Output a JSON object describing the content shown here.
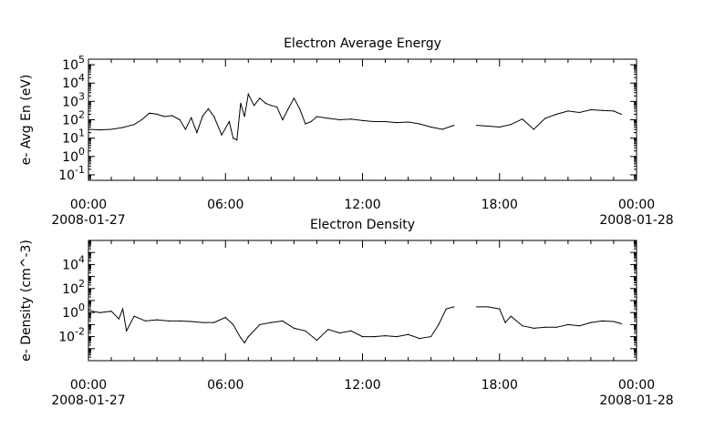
{
  "chart_data": [
    {
      "type": "line",
      "title": "Electron Average Energy",
      "ylabel": "e- Avg En (eV)",
      "xlabel": "",
      "y_scale": "log",
      "ylim": [
        0.05,
        200000
      ],
      "y_ticks": [
        {
          "value": 0.1,
          "base": "10",
          "exp": "-1"
        },
        {
          "value": 1,
          "base": "10",
          "exp": "0"
        },
        {
          "value": 10,
          "base": "10",
          "exp": "1"
        },
        {
          "value": 100,
          "base": "10",
          "exp": "2"
        },
        {
          "value": 1000,
          "base": "10",
          "exp": "3"
        },
        {
          "value": 10000,
          "base": "10",
          "exp": "4"
        },
        {
          "value": 100000,
          "base": "10",
          "exp": "5"
        }
      ],
      "x_ticks": [
        {
          "time": "2008-01-27 00:00",
          "label": "00:00",
          "date_label": "2008-01-27"
        },
        {
          "time": "2008-01-27 06:00",
          "label": "06:00",
          "date_label": ""
        },
        {
          "time": "2008-01-27 12:00",
          "label": "12:00",
          "date_label": ""
        },
        {
          "time": "2008-01-27 18:00",
          "label": "18:00",
          "date_label": ""
        },
        {
          "time": "2008-01-28 00:00",
          "label": "00:00",
          "date_label": "2008-01-28"
        }
      ],
      "xlim": [
        "2008-01-27 00:00",
        "2008-01-28 00:00"
      ],
      "grid": false,
      "series": [
        {
          "color": "#000000",
          "points": [
            [
              "2008-01-27 00:00",
              30
            ],
            [
              "2008-01-27 00:30",
              28
            ],
            [
              "2008-01-27 01:00",
              30
            ],
            [
              "2008-01-27 01:30",
              38
            ],
            [
              "2008-01-27 02:00",
              55
            ],
            [
              "2008-01-27 02:20",
              100
            ],
            [
              "2008-01-27 02:40",
              230
            ],
            [
              "2008-01-27 03:00",
              200
            ],
            [
              "2008-01-27 03:20",
              150
            ],
            [
              "2008-01-27 03:40",
              170
            ],
            [
              "2008-01-27 04:00",
              100
            ],
            [
              "2008-01-27 04:15",
              30
            ],
            [
              "2008-01-27 04:30",
              130
            ],
            [
              "2008-01-27 04:45",
              20
            ],
            [
              "2008-01-27 05:00",
              160
            ],
            [
              "2008-01-27 05:15",
              400
            ],
            [
              "2008-01-27 05:30",
              150
            ],
            [
              "2008-01-27 05:50",
              15
            ],
            [
              "2008-01-27 06:10",
              80
            ],
            [
              "2008-01-27 06:20",
              10
            ],
            [
              "2008-01-27 06:30",
              8
            ],
            [
              "2008-01-27 06:40",
              800
            ],
            [
              "2008-01-27 06:50",
              150
            ],
            [
              "2008-01-27 07:00",
              2500
            ],
            [
              "2008-01-27 07:15",
              600
            ],
            [
              "2008-01-27 07:30",
              1500
            ],
            [
              "2008-01-27 07:45",
              800
            ],
            [
              "2008-01-27 08:00",
              600
            ],
            [
              "2008-01-27 08:15",
              500
            ],
            [
              "2008-01-27 08:30",
              100
            ],
            [
              "2008-01-27 08:45",
              400
            ],
            [
              "2008-01-27 09:00",
              1500
            ],
            [
              "2008-01-27 09:15",
              400
            ],
            [
              "2008-01-27 09:30",
              60
            ],
            [
              "2008-01-27 09:45",
              80
            ],
            [
              "2008-01-27 10:00",
              150
            ],
            [
              "2008-01-27 10:30",
              120
            ],
            [
              "2008-01-27 11:00",
              100
            ],
            [
              "2008-01-27 11:30",
              110
            ],
            [
              "2008-01-27 12:00",
              90
            ],
            [
              "2008-01-27 12:30",
              80
            ],
            [
              "2008-01-27 13:00",
              80
            ],
            [
              "2008-01-27 13:30",
              70
            ],
            [
              "2008-01-27 14:00",
              75
            ],
            [
              "2008-01-27 14:30",
              60
            ],
            [
              "2008-01-27 15:00",
              40
            ],
            [
              "2008-01-27 15:30",
              30
            ],
            [
              "2008-01-27 16:00",
              50
            ],
            null,
            [
              "2008-01-27 17:00",
              50
            ],
            [
              "2008-01-27 17:30",
              45
            ],
            [
              "2008-01-27 18:00",
              40
            ],
            [
              "2008-01-27 18:30",
              55
            ],
            [
              "2008-01-27 19:00",
              110
            ],
            [
              "2008-01-27 19:30",
              30
            ],
            [
              "2008-01-27 20:00",
              120
            ],
            [
              "2008-01-27 20:30",
              200
            ],
            [
              "2008-01-27 21:00",
              300
            ],
            [
              "2008-01-27 21:30",
              250
            ],
            [
              "2008-01-27 22:00",
              350
            ],
            [
              "2008-01-27 22:30",
              320
            ],
            [
              "2008-01-27 23:00",
              300
            ],
            [
              "2008-01-27 23:20",
              200
            ]
          ]
        }
      ]
    },
    {
      "type": "line",
      "title": "Electron Density",
      "ylabel": "e- Density (cm^-3)",
      "xlabel": "",
      "y_scale": "log",
      "ylim": [
        0.0001,
        1000000
      ],
      "y_ticks": [
        {
          "value": 0.01,
          "base": "10",
          "exp": "-2"
        },
        {
          "value": 1,
          "base": "10",
          "exp": "0"
        },
        {
          "value": 100,
          "base": "10",
          "exp": "2"
        },
        {
          "value": 10000,
          "base": "10",
          "exp": "4"
        }
      ],
      "x_ticks": [
        {
          "time": "2008-01-27 00:00",
          "label": "00:00",
          "date_label": "2008-01-27"
        },
        {
          "time": "2008-01-27 06:00",
          "label": "06:00",
          "date_label": ""
        },
        {
          "time": "2008-01-27 12:00",
          "label": "12:00",
          "date_label": ""
        },
        {
          "time": "2008-01-27 18:00",
          "label": "18:00",
          "date_label": ""
        },
        {
          "time": "2008-01-28 00:00",
          "label": "00:00",
          "date_label": "2008-01-28"
        }
      ],
      "xlim": [
        "2008-01-27 00:00",
        "2008-01-28 00:00"
      ],
      "grid": false,
      "series": [
        {
          "color": "#000000",
          "points": [
            [
              "2008-01-27 00:00",
              1.5
            ],
            [
              "2008-01-27 00:30",
              1.0
            ],
            [
              "2008-01-27 01:00",
              1.3
            ],
            [
              "2008-01-27 01:20",
              0.3
            ],
            [
              "2008-01-27 01:30",
              2.0
            ],
            [
              "2008-01-27 01:40",
              0.03
            ],
            [
              "2008-01-27 02:00",
              0.5
            ],
            [
              "2008-01-27 02:30",
              0.2
            ],
            [
              "2008-01-27 03:00",
              0.25
            ],
            [
              "2008-01-27 03:30",
              0.2
            ],
            [
              "2008-01-27 04:00",
              0.2
            ],
            [
              "2008-01-27 04:30",
              0.18
            ],
            [
              "2008-01-27 05:00",
              0.15
            ],
            [
              "2008-01-27 05:30",
              0.15
            ],
            [
              "2008-01-27 06:00",
              0.4
            ],
            [
              "2008-01-27 06:20",
              0.1
            ],
            [
              "2008-01-27 06:40",
              0.008
            ],
            [
              "2008-01-27 06:50",
              0.003
            ],
            [
              "2008-01-27 07:00",
              0.01
            ],
            [
              "2008-01-27 07:30",
              0.1
            ],
            [
              "2008-01-27 08:00",
              0.15
            ],
            [
              "2008-01-27 08:30",
              0.2
            ],
            [
              "2008-01-27 09:00",
              0.05
            ],
            [
              "2008-01-27 09:30",
              0.03
            ],
            [
              "2008-01-27 10:00",
              0.005
            ],
            [
              "2008-01-27 10:30",
              0.04
            ],
            [
              "2008-01-27 11:00",
              0.02
            ],
            [
              "2008-01-27 11:30",
              0.03
            ],
            [
              "2008-01-27 12:00",
              0.01
            ],
            [
              "2008-01-27 12:30",
              0.01
            ],
            [
              "2008-01-27 13:00",
              0.012
            ],
            [
              "2008-01-27 13:30",
              0.01
            ],
            [
              "2008-01-27 14:00",
              0.015
            ],
            [
              "2008-01-27 14:30",
              0.007
            ],
            [
              "2008-01-27 15:00",
              0.01
            ],
            [
              "2008-01-27 15:20",
              0.1
            ],
            [
              "2008-01-27 15:40",
              2.0
            ],
            [
              "2008-01-27 16:00",
              3.0
            ],
            null,
            [
              "2008-01-27 17:00",
              3.0
            ],
            [
              "2008-01-27 17:30",
              3.0
            ],
            [
              "2008-01-27 18:00",
              2.0
            ],
            [
              "2008-01-27 18:15",
              0.15
            ],
            [
              "2008-01-27 18:30",
              0.5
            ],
            [
              "2008-01-27 19:00",
              0.08
            ],
            [
              "2008-01-27 19:30",
              0.05
            ],
            [
              "2008-01-27 20:00",
              0.06
            ],
            [
              "2008-01-27 20:30",
              0.06
            ],
            [
              "2008-01-27 21:00",
              0.1
            ],
            [
              "2008-01-27 21:30",
              0.08
            ],
            [
              "2008-01-27 22:00",
              0.15
            ],
            [
              "2008-01-27 22:30",
              0.2
            ],
            [
              "2008-01-27 23:00",
              0.18
            ],
            [
              "2008-01-27 23:20",
              0.12
            ]
          ]
        }
      ]
    }
  ]
}
